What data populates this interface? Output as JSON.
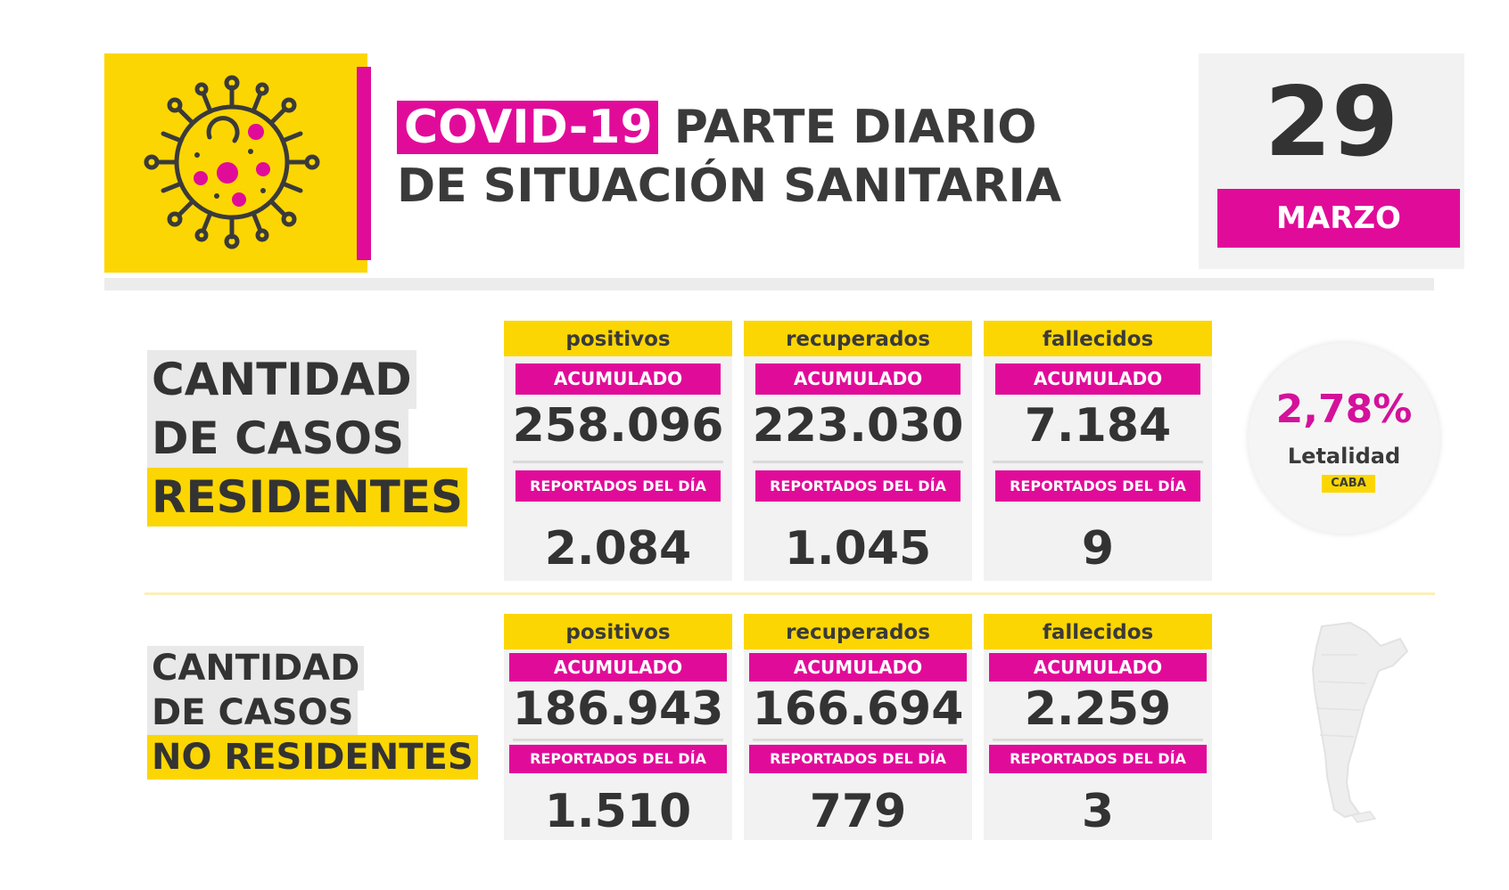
{
  "header": {
    "title_highlight": "COVID-19",
    "title_rest": "PARTE DIARIO",
    "title_line2": "DE SITUACIÓN SANITARIA",
    "icon": "virus-icon",
    "date_day": "29",
    "date_month": "MARZO"
  },
  "colors": {
    "yellow": "#fcd602",
    "magenta": "#e10b9a",
    "text_dark": "#333333",
    "card_bg": "#f2f2f2"
  },
  "residentes": {
    "label_line1": "CANTIDAD",
    "label_line2": "DE CASOS",
    "label_line3": "RESIDENTES",
    "cards": [
      {
        "title": "positivos",
        "acc_label": "ACUMULADO",
        "acc_value": "258.096",
        "day_label": "REPORTADOS DEL DÍA",
        "day_value": "2.084"
      },
      {
        "title": "recuperados",
        "acc_label": "ACUMULADO",
        "acc_value": "223.030",
        "day_label": "REPORTADOS DEL DÍA",
        "day_value": "1.045"
      },
      {
        "title": "fallecidos",
        "acc_label": "ACUMULADO",
        "acc_value": "7.184",
        "day_label": "REPORTADOS DEL DÍA",
        "day_value": "9"
      }
    ]
  },
  "letalidad": {
    "value": "2,78%",
    "label": "Letalidad",
    "tag": "CABA"
  },
  "no_residentes": {
    "label_line1": "CANTIDAD",
    "label_line2": "DE CASOS",
    "label_line3": "NO RESIDENTES",
    "map_icon": "argentina-map-icon",
    "cards": [
      {
        "title": "positivos",
        "acc_label": "ACUMULADO",
        "acc_value": "186.943",
        "day_label": "REPORTADOS DEL DÍA",
        "day_value": "1.510"
      },
      {
        "title": "recuperados",
        "acc_label": "ACUMULADO",
        "acc_value": "166.694",
        "day_label": "REPORTADOS DEL DÍA",
        "day_value": "779"
      },
      {
        "title": "fallecidos",
        "acc_label": "ACUMULADO",
        "acc_value": "2.259",
        "day_label": "REPORTADOS DEL DÍA",
        "day_value": "3"
      }
    ]
  }
}
